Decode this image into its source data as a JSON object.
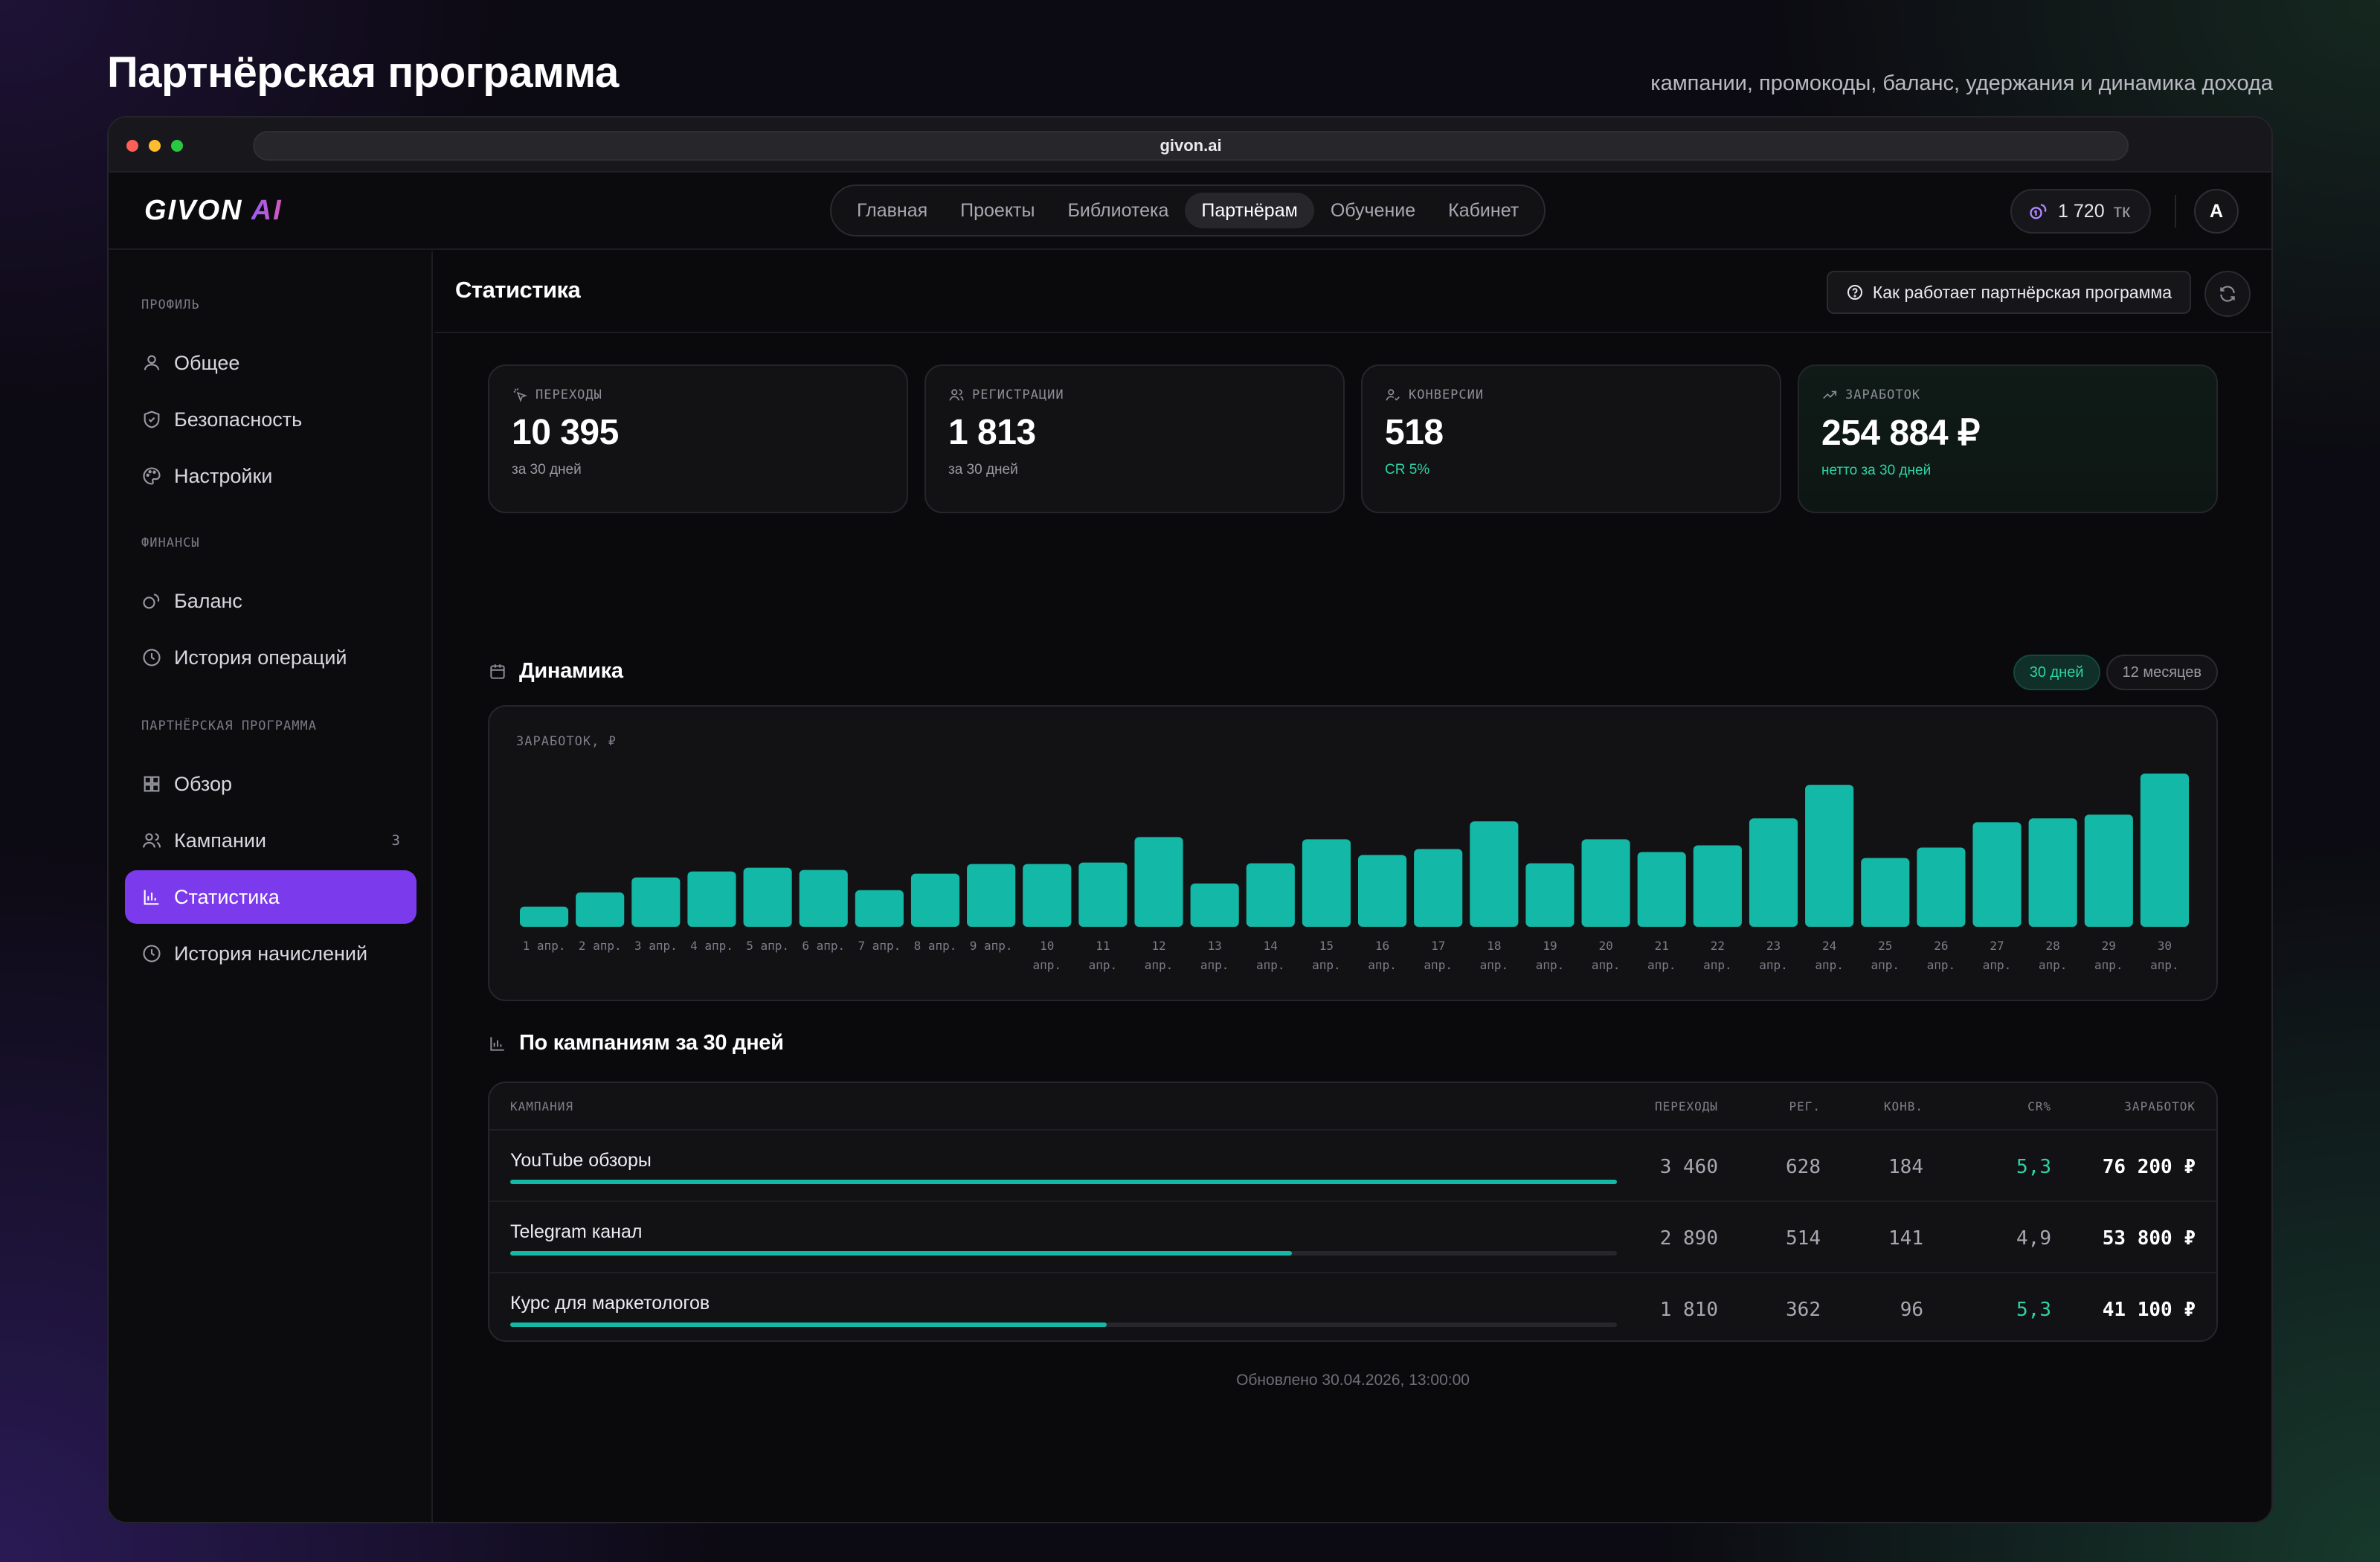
{
  "page": {
    "title": "Партнёрская программа",
    "subtitle": "кампании, промокоды, баланс, удержания и динамика дохода"
  },
  "browser": {
    "url": "givon.ai"
  },
  "header": {
    "logo_main": "GIVON",
    "logo_accent": "AI",
    "nav": [
      "Главная",
      "Проекты",
      "Библиотека",
      "Партнёрам",
      "Обучение",
      "Кабинет"
    ],
    "nav_active": "Партнёрам",
    "tokens_value": "1 720",
    "tokens_unit": "тк",
    "avatar_letter": "A"
  },
  "sidebar": {
    "sections": [
      {
        "title": "ПРОФИЛЬ",
        "items": [
          {
            "label": "Общее",
            "icon": "user-icon"
          },
          {
            "label": "Безопасность",
            "icon": "shield-icon"
          },
          {
            "label": "Настройки",
            "icon": "palette-icon"
          }
        ]
      },
      {
        "title": "ФИНАНСЫ",
        "items": [
          {
            "label": "Баланс",
            "icon": "coins-icon"
          },
          {
            "label": "История операций",
            "icon": "clock-icon"
          }
        ]
      },
      {
        "title": "ПАРТНЁРСКАЯ ПРОГРАММА",
        "items": [
          {
            "label": "Обзор",
            "icon": "grid-icon"
          },
          {
            "label": "Кампании",
            "icon": "users-icon",
            "count": "3"
          },
          {
            "label": "Статистика",
            "icon": "bar-chart-icon",
            "active": true
          },
          {
            "label": "История начислений",
            "icon": "clock-icon"
          }
        ]
      }
    ]
  },
  "main": {
    "title": "Статистика",
    "help_label": "Как работает партнёрская программа",
    "kpis": [
      {
        "label": "ПЕРЕХОДЫ",
        "value": "10 395",
        "sub": "за 30 дней",
        "icon": "click-icon"
      },
      {
        "label": "РЕГИСТРАЦИИ",
        "value": "1 813",
        "sub": "за 30 дней",
        "icon": "users-icon"
      },
      {
        "label": "КОНВЕРСИИ",
        "value": "518",
        "sub": "CR 5%",
        "icon": "user-check-icon"
      },
      {
        "label": "ЗАРАБОТОК",
        "value": "254 884 ₽",
        "sub": "нетто за 30 дней",
        "icon": "trending-up-icon"
      }
    ],
    "dynamics_title": "Динамика",
    "range_options": [
      "30 дней",
      "12 месяцев"
    ],
    "range_active": "30 дней",
    "campaigns_title": "По кампаниям за 30 дней",
    "table": {
      "headers": [
        "КАМПАНИЯ",
        "ПЕРЕХОДЫ",
        "РЕГ.",
        "КОНВ.",
        "CR%",
        "ЗАРАБОТОК"
      ],
      "rows": [
        {
          "name": "YouTube обзоры",
          "clicks": "3 460",
          "reg": "628",
          "conv": "184",
          "cr": "5,3",
          "earn": "76 200 ₽",
          "share": 1.0,
          "cr_highlight": true
        },
        {
          "name": "Telegram канал",
          "clicks": "2 890",
          "reg": "514",
          "conv": "141",
          "cr": "4,9",
          "earn": "53 800 ₽",
          "share": 0.706,
          "cr_highlight": false
        },
        {
          "name": "Курс для маркетологов",
          "clicks": "1 810",
          "reg": "362",
          "conv": "96",
          "cr": "5,3",
          "earn": "41 100 ₽",
          "share": 0.539,
          "cr_highlight": true
        }
      ]
    },
    "updated": "Обновлено 30.04.2026, 13:00:00"
  },
  "colors": {
    "accent_purple": "#7c3aed",
    "accent_teal": "#14b8a6",
    "positive_green": "#2dd4a6"
  },
  "chart_data": {
    "type": "bar",
    "ylabel": "ЗАРАБОТОК, ₽",
    "categories": [
      [
        "1 апр."
      ],
      [
        "2 апр."
      ],
      [
        "3 апр."
      ],
      [
        "4 апр."
      ],
      [
        "5 апр."
      ],
      [
        "6 апр."
      ],
      [
        "7 апр."
      ],
      [
        "8 апр."
      ],
      [
        "9 апр."
      ],
      [
        "10",
        "апр."
      ],
      [
        "11",
        "апр."
      ],
      [
        "12",
        "апр."
      ],
      [
        "13",
        "апр."
      ],
      [
        "14",
        "апр."
      ],
      [
        "15",
        "апр."
      ],
      [
        "16",
        "апр."
      ],
      [
        "17",
        "апр."
      ],
      [
        "18",
        "апр."
      ],
      [
        "19",
        "апр."
      ],
      [
        "20",
        "апр."
      ],
      [
        "21",
        "апр."
      ],
      [
        "22",
        "апр."
      ],
      [
        "23",
        "апр."
      ],
      [
        "24",
        "апр."
      ],
      [
        "25",
        "апр."
      ],
      [
        "26",
        "апр."
      ],
      [
        "27",
        "апр."
      ],
      [
        "28",
        "апр."
      ],
      [
        "29",
        "апр."
      ],
      [
        "30",
        "апр."
      ]
    ],
    "values": [
      2700,
      4600,
      6600,
      7400,
      7900,
      7600,
      4900,
      7100,
      8400,
      8400,
      8600,
      12000,
      5800,
      8500,
      11700,
      9600,
      10400,
      14100,
      8500,
      11700,
      10000,
      10900,
      14500,
      19000,
      9200,
      10600,
      14000,
      14500,
      15000,
      20500
    ],
    "series": [
      {
        "values_ref": "values",
        "color": "#14b8a6"
      }
    ],
    "grid": false,
    "legend": "none"
  }
}
